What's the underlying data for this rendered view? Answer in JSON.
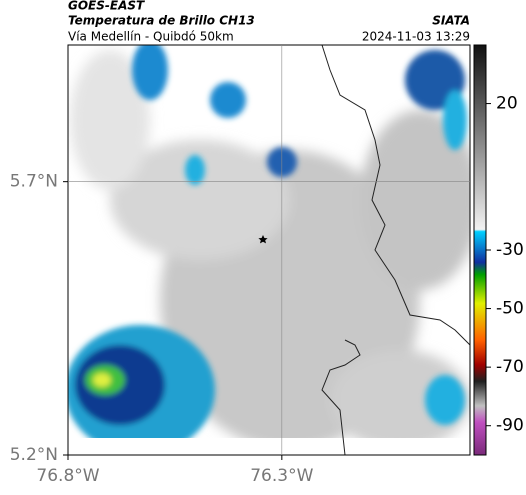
{
  "header": {
    "satellite": "GOES-EAST",
    "title": "Temperatura de Brillo CH13",
    "subtitle": "Vía Medellín - Quibdó 50km",
    "source": "SIATA",
    "datetime": "2024-11-03 13:29"
  },
  "map": {
    "xlim": [
      -76.8,
      -75.86
    ],
    "ylim": [
      5.2,
      5.95
    ],
    "xticks": [
      {
        "value": -76.8,
        "label": "76.8°W"
      },
      {
        "value": -76.3,
        "label": "76.3°W"
      }
    ],
    "yticks": [
      {
        "value": 5.7,
        "label": "5.7°N"
      },
      {
        "value": 5.2,
        "label": "5.2°N"
      }
    ]
  },
  "colorbar": {
    "clim": [
      -100,
      40
    ],
    "ticks": [
      20,
      -30,
      -50,
      -70,
      -90
    ]
  }
}
